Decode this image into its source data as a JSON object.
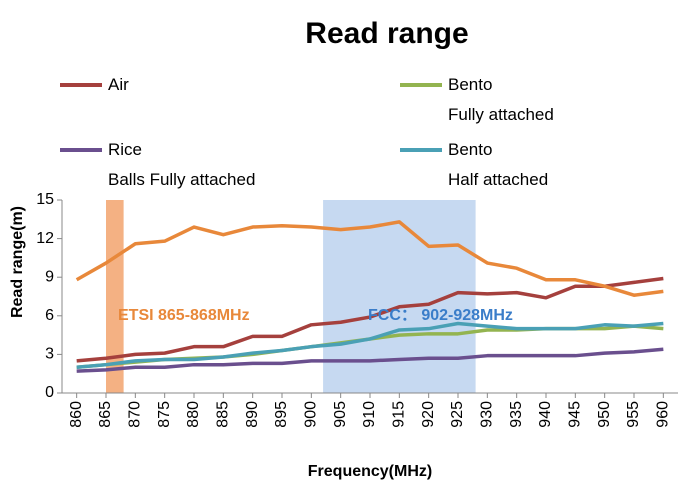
{
  "chart_data": {
    "type": "line",
    "title": "Read range",
    "x_label": "Frequency(MHz)",
    "y_label": "Read range(m)",
    "x": [
      860,
      865,
      870,
      875,
      880,
      885,
      890,
      895,
      900,
      905,
      910,
      915,
      920,
      925,
      930,
      935,
      940,
      945,
      950,
      955,
      960
    ],
    "xlim": [
      857.5,
      962.5
    ],
    "xticks": [
      860,
      865,
      870,
      875,
      880,
      885,
      890,
      895,
      900,
      905,
      910,
      915,
      920,
      925,
      930,
      935,
      940,
      945,
      950,
      955,
      960
    ],
    "ylim": [
      0,
      15
    ],
    "yticks": [
      0,
      3,
      6,
      9,
      12,
      15
    ],
    "grid": false,
    "bands": [
      {
        "label": "ETSI 865-868MHz",
        "range": [
          865,
          868
        ],
        "color": "#f4b183",
        "label_color": "#e8883a"
      },
      {
        "label": "FCC： 902-928MHz",
        "range": [
          902,
          928
        ],
        "color": "#c6d9f1",
        "label_color": "#3a7dc9"
      }
    ],
    "series": [
      {
        "name": "Air",
        "color": "#a5403d",
        "values": [
          2.5,
          2.7,
          3.0,
          3.1,
          3.6,
          3.6,
          4.4,
          4.4,
          5.3,
          5.5,
          5.9,
          6.7,
          6.9,
          7.8,
          7.7,
          7.8,
          7.4,
          8.3,
          8.3,
          8.6,
          8.9
        ]
      },
      {
        "name": "Bento\nFully attached",
        "color": "#93b450",
        "values": [
          2.0,
          2.2,
          2.4,
          2.6,
          2.7,
          2.8,
          3.0,
          3.3,
          3.6,
          3.9,
          4.2,
          4.5,
          4.6,
          4.6,
          4.9,
          4.9,
          5.0,
          5.0,
          5.0,
          5.2,
          5.0
        ]
      },
      {
        "name": "Rice\nBalls Fully attached",
        "color": "#6a4f8e",
        "values": [
          1.7,
          1.8,
          2.0,
          2.0,
          2.2,
          2.2,
          2.3,
          2.3,
          2.5,
          2.5,
          2.5,
          2.6,
          2.7,
          2.7,
          2.9,
          2.9,
          2.9,
          2.9,
          3.1,
          3.2,
          3.4
        ]
      },
      {
        "name": "Bento\nHalf attached",
        "color": "#4aa0b5",
        "values": [
          2.0,
          2.2,
          2.5,
          2.6,
          2.6,
          2.8,
          3.1,
          3.3,
          3.6,
          3.8,
          4.2,
          4.9,
          5.0,
          5.4,
          5.2,
          5.0,
          5.0,
          5.0,
          5.3,
          5.2,
          5.4
        ]
      },
      {
        "color": "#e8883a",
        "values": [
          8.8,
          10.1,
          11.6,
          11.8,
          12.9,
          12.3,
          12.9,
          13.0,
          12.9,
          12.7,
          12.9,
          13.3,
          11.4,
          11.5,
          10.1,
          9.7,
          8.8,
          8.8,
          8.3,
          7.6,
          7.9
        ]
      }
    ]
  }
}
